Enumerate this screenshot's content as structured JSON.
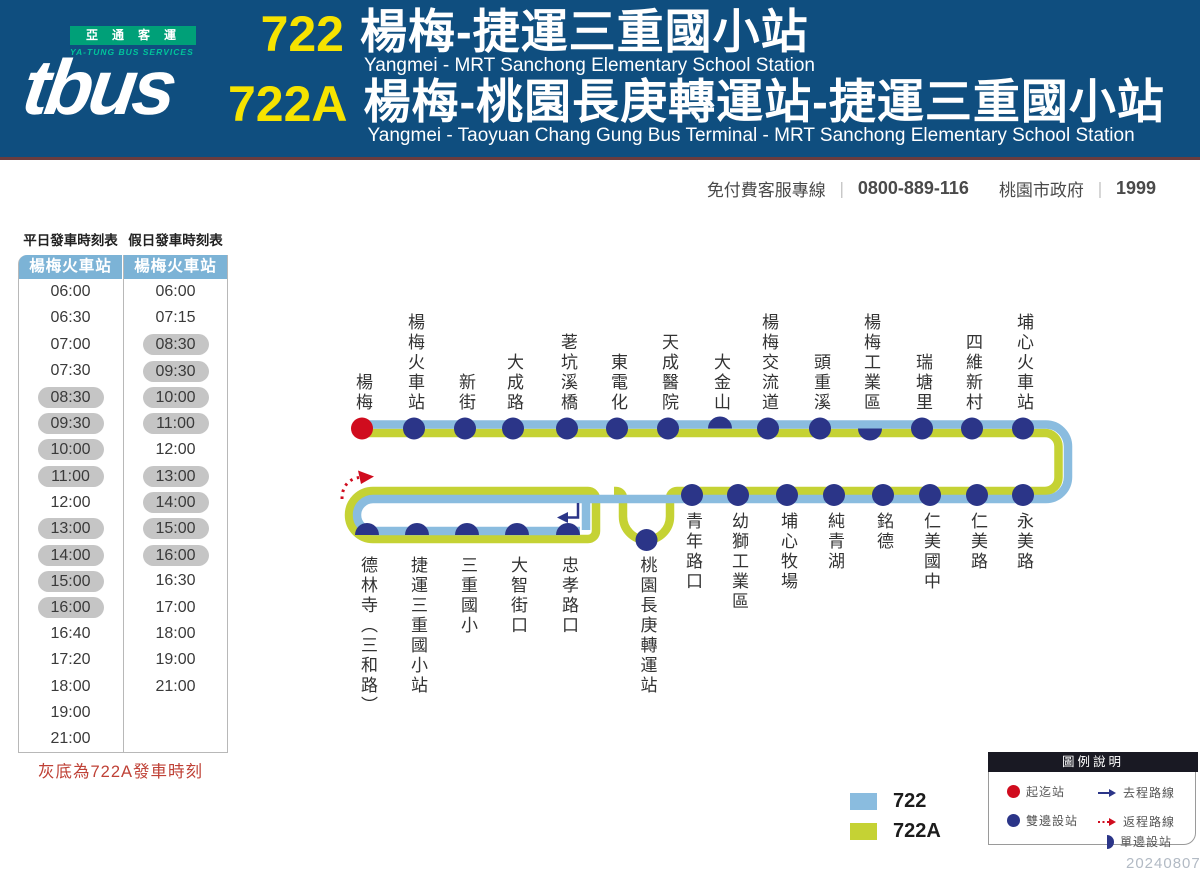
{
  "header": {
    "logo": {
      "brand": "tbus",
      "banner_zh": "亞通客運",
      "banner_en": "YA-TUNG BUS SERVICES"
    },
    "route1": {
      "number": "722",
      "title_zh": "楊梅-捷運三重國小站",
      "title_en": "Yangmei - MRT Sanchong Elementary School Station"
    },
    "route2": {
      "number": "722A",
      "title_zh": "楊梅-桃園長庚轉運站-捷運三重國小站",
      "title_en": "Yangmei - Taoyuan Chang Gung Bus Terminal - MRT Sanchong Elementary School Station"
    }
  },
  "service": {
    "hotline_label": "免付費客服專線",
    "hotline_number": "0800-889-116",
    "separator": "｜",
    "gov_label": "桃園市政府",
    "gov_number": "1999"
  },
  "timetable": {
    "weekday": {
      "title": "平日發車時刻表",
      "terminal": "楊梅火車站",
      "times": [
        {
          "t": "06:00",
          "gray": false
        },
        {
          "t": "06:30",
          "gray": false
        },
        {
          "t": "07:00",
          "gray": false
        },
        {
          "t": "07:30",
          "gray": false
        },
        {
          "t": "08:30",
          "gray": true
        },
        {
          "t": "09:30",
          "gray": true
        },
        {
          "t": "10:00",
          "gray": true
        },
        {
          "t": "11:00",
          "gray": true
        },
        {
          "t": "12:00",
          "gray": false
        },
        {
          "t": "13:00",
          "gray": true
        },
        {
          "t": "14:00",
          "gray": true
        },
        {
          "t": "15:00",
          "gray": true
        },
        {
          "t": "16:00",
          "gray": true
        },
        {
          "t": "16:40",
          "gray": false
        },
        {
          "t": "17:20",
          "gray": false
        },
        {
          "t": "18:00",
          "gray": false
        },
        {
          "t": "19:00",
          "gray": false
        },
        {
          "t": "21:00",
          "gray": false
        }
      ]
    },
    "holiday": {
      "title": "假日發車時刻表",
      "terminal": "楊梅火車站",
      "times": [
        {
          "t": "06:00",
          "gray": false
        },
        {
          "t": "07:15",
          "gray": false
        },
        {
          "t": "08:30",
          "gray": true
        },
        {
          "t": "09:30",
          "gray": true
        },
        {
          "t": "10:00",
          "gray": true
        },
        {
          "t": "11:00",
          "gray": true
        },
        {
          "t": "12:00",
          "gray": false
        },
        {
          "t": "13:00",
          "gray": true
        },
        {
          "t": "14:00",
          "gray": true
        },
        {
          "t": "15:00",
          "gray": true
        },
        {
          "t": "16:00",
          "gray": true
        },
        {
          "t": "16:30",
          "gray": false
        },
        {
          "t": "17:00",
          "gray": false
        },
        {
          "t": "18:00",
          "gray": false
        },
        {
          "t": "19:00",
          "gray": false
        },
        {
          "t": "21:00",
          "gray": false
        }
      ]
    },
    "note": "灰底為722A發車時刻"
  },
  "map": {
    "top_stations": [
      {
        "name": "楊梅",
        "type": "start"
      },
      {
        "name": "楊梅火車站",
        "type": "full"
      },
      {
        "name": "新街",
        "type": "full"
      },
      {
        "name": "大成路",
        "type": "full"
      },
      {
        "name": "荖坑溪橋",
        "type": "full"
      },
      {
        "name": "東電化",
        "type": "full"
      },
      {
        "name": "天成醫院",
        "type": "full"
      },
      {
        "name": "大金山",
        "type": "half-up"
      },
      {
        "name": "楊梅交流道",
        "type": "full"
      },
      {
        "name": "頭重溪",
        "type": "full"
      },
      {
        "name": "楊梅工業區",
        "type": "half-down"
      },
      {
        "name": "瑞塘里",
        "type": "full"
      },
      {
        "name": "四維新村",
        "type": "full"
      },
      {
        "name": "埔心火車站",
        "type": "full"
      }
    ],
    "mid_stations": [
      {
        "name": "青年路口",
        "type": "full"
      },
      {
        "name": "幼獅工業區",
        "type": "full"
      },
      {
        "name": "埔心牧場",
        "type": "full"
      },
      {
        "name": "純青湖",
        "type": "full"
      },
      {
        "name": "銘德",
        "type": "full"
      },
      {
        "name": "仁美國中",
        "type": "full"
      },
      {
        "name": "仁美路",
        "type": "full"
      },
      {
        "name": "永美路",
        "type": "full"
      }
    ],
    "loop_stations": [
      {
        "name": "德林寺（三和路）",
        "type": "half-up"
      },
      {
        "name": "捷運三重國小站",
        "type": "half-up"
      },
      {
        "name": "三重國小",
        "type": "half-up"
      },
      {
        "name": "大智街口",
        "type": "half-up"
      },
      {
        "name": "忠孝路口",
        "type": "half-up"
      }
    ],
    "branch_station": {
      "name": "桃園長庚轉運站",
      "type": "full"
    }
  },
  "route_legend": [
    {
      "label": "722",
      "color": "#8abcdf"
    },
    {
      "label": "722A",
      "color": "#c5d234"
    }
  ],
  "legend_box": {
    "title": "圖例說明",
    "items": [
      {
        "label": "起迄站",
        "marker": "start-dot"
      },
      {
        "label": "雙邊設站",
        "marker": "both-sides-dot"
      },
      {
        "label": "去程路線",
        "marker": "outbound-arrow"
      },
      {
        "label": "返程路線",
        "marker": "return-arrow"
      },
      {
        "label": "單邊設站",
        "marker": "one-side-dot"
      }
    ]
  },
  "footer": {
    "date": "20240807"
  },
  "colors": {
    "route_722": "#8abcdf",
    "route_722A": "#c5d234",
    "station_dot": "#2b3588",
    "start_dot": "#d00c1e",
    "return_arrow": "#d00c1e"
  }
}
